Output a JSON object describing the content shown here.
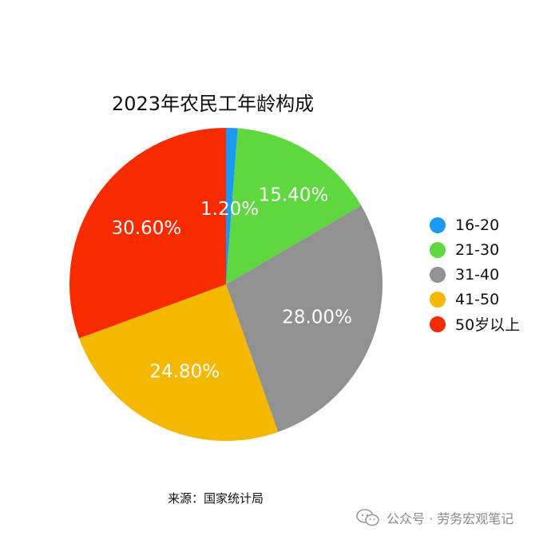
{
  "chart_data": {
    "type": "pie",
    "title": "2023年农民工年龄构成",
    "categories": [
      "16-20",
      "21-30",
      "31-40",
      "41-50",
      "50岁以上"
    ],
    "values": [
      1.2,
      15.4,
      28.0,
      24.8,
      30.6
    ],
    "data_labels": [
      "1.20%",
      "15.40%",
      "28.00%",
      "24.80%",
      "30.60%"
    ],
    "colors": [
      "#1a9af5",
      "#5fd83f",
      "#919191",
      "#f5b800",
      "#f72a00"
    ],
    "start_angle_deg": 0,
    "direction": "clockwise",
    "legend_position": "right"
  },
  "source_note": "来源：国家统计局",
  "watermark": {
    "icon": "wechat-icon",
    "text": "公众号 · 劳务宏观笔记"
  }
}
